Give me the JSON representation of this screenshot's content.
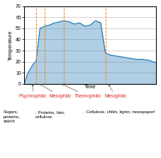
{
  "chart_data": {
    "type": "area",
    "x_label": "Time",
    "y_label": "Temperature",
    "x": [
      0.0,
      0.03,
      0.07,
      0.09,
      0.12,
      0.155,
      0.19,
      0.23,
      0.27,
      0.3,
      0.34,
      0.38,
      0.42,
      0.46,
      0.5,
      0.54,
      0.58,
      0.615,
      0.65,
      0.7,
      0.75,
      0.8,
      0.85,
      0.9,
      0.95,
      1.0
    ],
    "values": [
      0,
      10,
      18,
      20,
      50,
      52,
      53,
      55,
      56,
      57,
      56,
      54,
      55,
      52,
      53,
      57,
      55,
      28,
      26,
      25,
      24,
      23,
      22,
      22,
      21,
      19
    ],
    "xlim": [
      0,
      1.0
    ],
    "xticks": [],
    "ylim": [
      0,
      70
    ],
    "yticks": [
      0,
      10,
      20,
      30,
      40,
      50,
      60,
      70
    ],
    "grid": true,
    "tick_labels": "y",
    "vlines": [
      0.09,
      0.155,
      0.3,
      0.615
    ],
    "annotations": [
      {
        "text": "Psychrophilic",
        "x": 0.065
      },
      {
        "text": "Mesophilic",
        "x": 0.115
      },
      {
        "text": "Thermophilic",
        "x": 0.28
      },
      {
        "text": "Mesophilic",
        "x": 0.635
      }
    ],
    "notes": [
      "Sugars,\nproteins,\nstarch",
      ": Proteins, fats,\ncellulose",
      ": Cellulose, chitin, lignin, newspaper!"
    ]
  }
}
